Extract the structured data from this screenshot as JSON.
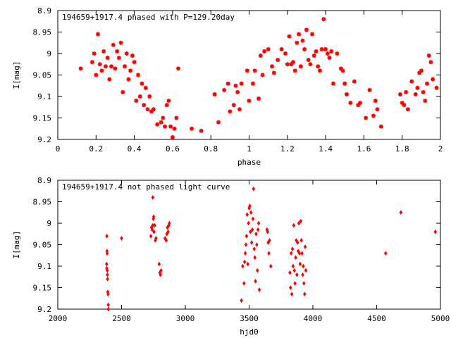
{
  "chart_data": [
    {
      "type": "scatter",
      "title": "194659+1917.4 phased with P=129.20day",
      "xlabel": "phase",
      "ylabel": "I[mag]",
      "xlim": [
        0,
        2
      ],
      "ylim": [
        9.2,
        8.9
      ],
      "y_inverted": true,
      "x_ticks": [
        "0",
        "0.2",
        "0.4",
        "0.6",
        "0.8",
        "1",
        "1.2",
        "1.4",
        "1.6",
        "1.8",
        "2"
      ],
      "y_ticks": [
        "8.9",
        "8.95",
        "9",
        "9.05",
        "9.1",
        "9.15",
        "9.2"
      ],
      "marker_color": "#ff0000",
      "marker": "star",
      "grid": false,
      "legend": "none",
      "series": [
        {
          "points": [
            [
              0.12,
              9.035
            ],
            [
              0.18,
              9.02
            ],
            [
              0.19,
              9.0
            ],
            [
              0.2,
              9.05
            ],
            [
              0.21,
              8.955
            ],
            [
              0.22,
              9.025
            ],
            [
              0.23,
              9.04
            ],
            [
              0.24,
              8.995
            ],
            [
              0.25,
              9.03
            ],
            [
              0.26,
              9.01
            ],
            [
              0.27,
              9.06
            ],
            [
              0.28,
              9.03
            ],
            [
              0.29,
              8.98
            ],
            [
              0.3,
              9.035
            ],
            [
              0.31,
              8.995
            ],
            [
              0.32,
              9.01
            ],
            [
              0.33,
              8.975
            ],
            [
              0.34,
              9.09
            ],
            [
              0.35,
              9.03
            ],
            [
              0.36,
              9.0
            ],
            [
              0.37,
              9.06
            ],
            [
              0.38,
              9.04
            ],
            [
              0.39,
              9.005
            ],
            [
              0.4,
              9.02
            ],
            [
              0.41,
              9.11
            ],
            [
              0.42,
              9.05
            ],
            [
              0.43,
              9.1
            ],
            [
              0.44,
              9.07
            ],
            [
              0.45,
              9.12
            ],
            [
              0.46,
              9.08
            ],
            [
              0.47,
              9.13
            ],
            [
              0.48,
              9.1
            ],
            [
              0.49,
              9.135
            ],
            [
              0.5,
              9.13
            ],
            [
              0.52,
              9.165
            ],
            [
              0.54,
              9.16
            ],
            [
              0.55,
              9.15
            ],
            [
              0.56,
              9.17
            ],
            [
              0.57,
              9.12
            ],
            [
              0.58,
              9.11
            ],
            [
              0.59,
              9.17
            ],
            [
              0.6,
              9.195
            ],
            [
              0.61,
              9.175
            ],
            [
              0.62,
              9.15
            ],
            [
              0.63,
              9.035
            ],
            [
              0.7,
              9.175
            ],
            [
              0.75,
              9.18
            ],
            [
              0.82,
              9.095
            ],
            [
              0.84,
              9.16
            ],
            [
              0.87,
              9.085
            ],
            [
              0.89,
              9.07
            ],
            [
              0.9,
              9.135
            ],
            [
              0.92,
              9.12
            ],
            [
              0.93,
              9.075
            ],
            [
              0.94,
              9.09
            ],
            [
              0.95,
              9.13
            ],
            [
              0.96,
              9.07
            ],
            [
              0.99,
              9.04
            ],
            [
              1.0,
              9.11
            ],
            [
              1.02,
              9.07
            ],
            [
              1.03,
              9.04
            ],
            [
              1.05,
              9.105
            ],
            [
              1.06,
              9.005
            ],
            [
              1.07,
              9.05
            ],
            [
              1.08,
              8.995
            ],
            [
              1.1,
              8.99
            ],
            [
              1.12,
              9.03
            ],
            [
              1.13,
              9.045
            ],
            [
              1.15,
              9.015
            ],
            [
              1.17,
              8.99
            ],
            [
              1.19,
              9.0
            ],
            [
              1.2,
              9.025
            ],
            [
              1.21,
              8.96
            ],
            [
              1.22,
              9.025
            ],
            [
              1.23,
              9.02
            ],
            [
              1.24,
              9.04
            ],
            [
              1.25,
              8.975
            ],
            [
              1.26,
              8.955
            ],
            [
              1.27,
              9.03
            ],
            [
              1.28,
              8.97
            ],
            [
              1.29,
              8.99
            ],
            [
              1.3,
              8.945
            ],
            [
              1.31,
              9.015
            ],
            [
              1.32,
              9.025
            ],
            [
              1.33,
              8.955
            ],
            [
              1.34,
              9.005
            ],
            [
              1.35,
              8.995
            ],
            [
              1.36,
              9.03
            ],
            [
              1.37,
              9.04
            ],
            [
              1.38,
              8.99
            ],
            [
              1.39,
              8.92
            ],
            [
              1.4,
              8.99
            ],
            [
              1.41,
              9.0
            ],
            [
              1.42,
              9.01
            ],
            [
              1.43,
              8.995
            ],
            [
              1.44,
              9.07
            ],
            [
              1.46,
              9.0
            ],
            [
              1.48,
              9.035
            ],
            [
              1.49,
              9.04
            ],
            [
              1.5,
              9.07
            ],
            [
              1.51,
              9.095
            ],
            [
              1.53,
              9.115
            ],
            [
              1.55,
              9.065
            ],
            [
              1.57,
              9.12
            ],
            [
              1.58,
              9.115
            ],
            [
              1.61,
              9.15
            ],
            [
              1.63,
              9.085
            ],
            [
              1.65,
              9.145
            ],
            [
              1.66,
              9.11
            ],
            [
              1.67,
              9.13
            ],
            [
              1.69,
              9.17
            ],
            [
              1.79,
              9.095
            ],
            [
              1.8,
              9.115
            ],
            [
              1.81,
              9.12
            ],
            [
              1.82,
              9.09
            ],
            [
              1.83,
              9.13
            ],
            [
              1.85,
              9.065
            ],
            [
              1.87,
              9.095
            ],
            [
              1.88,
              9.08
            ],
            [
              1.89,
              9.045
            ],
            [
              1.9,
              9.04
            ],
            [
              1.91,
              9.09
            ],
            [
              1.92,
              9.11
            ],
            [
              1.93,
              9.07
            ],
            [
              1.94,
              9.005
            ],
            [
              1.95,
              9.02
            ],
            [
              1.96,
              9.06
            ],
            [
              1.98,
              9.08
            ]
          ]
        }
      ]
    },
    {
      "type": "scatter",
      "title": "194659+1917.4 not phased light curve",
      "xlabel": "hjd0",
      "ylabel": "I[mag]",
      "xlim": [
        2000,
        5000
      ],
      "ylim": [
        9.2,
        8.9
      ],
      "y_inverted": true,
      "x_ticks": [
        "2000",
        "2500",
        "3000",
        "3500",
        "4000",
        "4500",
        "5000"
      ],
      "y_ticks": [
        "8.9",
        "8.95",
        "9",
        "9.05",
        "9.1",
        "9.15",
        "9.2"
      ],
      "marker_color": "#ff0000",
      "marker": "diamond",
      "grid": false,
      "legend": "none",
      "series": [
        {
          "points": [
            [
              2385,
              9.03
            ],
            [
              2386,
              9.065
            ],
            [
              2387,
              9.07
            ],
            [
              2388,
              9.11
            ],
            [
              2389,
              9.12
            ],
            [
              2390,
              9.13
            ],
            [
              2392,
              9.16
            ],
            [
              2394,
              9.165
            ],
            [
              2396,
              9.19
            ],
            [
              2397,
              9.2
            ],
            [
              2383,
              9.095
            ],
            [
              2384,
              9.105
            ],
            [
              2500,
              9.035
            ],
            [
              2730,
              9.03
            ],
            [
              2735,
              9.01
            ],
            [
              2740,
              9.015
            ],
            [
              2745,
              9.005
            ],
            [
              2750,
              8.99
            ],
            [
              2752,
              8.985
            ],
            [
              2755,
              9.02
            ],
            [
              2760,
              9.005
            ],
            [
              2765,
              9.04
            ],
            [
              2770,
              9.035
            ],
            [
              2745,
              8.94
            ],
            [
              2795,
              9.095
            ],
            [
              2800,
              9.115
            ],
            [
              2805,
              9.12
            ],
            [
              2810,
              9.11
            ],
            [
              2840,
              9.035
            ],
            [
              2850,
              9.04
            ],
            [
              2855,
              9.025
            ],
            [
              2860,
              9.01
            ],
            [
              2865,
              9.02
            ],
            [
              2870,
              9.005
            ],
            [
              2875,
              9.0
            ],
            [
              3440,
              9.18
            ],
            [
              3450,
              9.1
            ],
            [
              3460,
              9.14
            ],
            [
              3465,
              9.09
            ],
            [
              3470,
              9.07
            ],
            [
              3475,
              9.05
            ],
            [
              3480,
              9.03
            ],
            [
              3485,
              8.98
            ],
            [
              3490,
              9.095
            ],
            [
              3495,
              9.0
            ],
            [
              3500,
              8.965
            ],
            [
              3505,
              8.96
            ],
            [
              3510,
              9.02
            ],
            [
              3515,
              8.975
            ],
            [
              3520,
              9.045
            ],
            [
              3525,
              9.015
            ],
            [
              3530,
              8.99
            ],
            [
              3535,
              8.92
            ],
            [
              3540,
              9.06
            ],
            [
              3545,
              9.08
            ],
            [
              3550,
              9.135
            ],
            [
              3555,
              9.025
            ],
            [
              3560,
              9.05
            ],
            [
              3565,
              9.11
            ],
            [
              3570,
              9.015
            ],
            [
              3575,
              9.0
            ],
            [
              3580,
              9.155
            ],
            [
              3640,
              9.015
            ],
            [
              3645,
              9.02
            ],
            [
              3650,
              9.045
            ],
            [
              3655,
              9.07
            ],
            [
              3660,
              9.04
            ],
            [
              3670,
              9.1
            ],
            [
              3820,
              9.115
            ],
            [
              3825,
              9.15
            ],
            [
              3830,
              9.07
            ],
            [
              3835,
              9.165
            ],
            [
              3840,
              9.06
            ],
            [
              3845,
              9.1
            ],
            [
              3850,
              9.005
            ],
            [
              3855,
              9.11
            ],
            [
              3860,
              9.14
            ],
            [
              3865,
              9.08
            ],
            [
              3870,
              9.04
            ],
            [
              3875,
              9.12
            ],
            [
              3880,
              9.045
            ],
            [
              3885,
              9.065
            ],
            [
              3890,
              9.0
            ],
            [
              3895,
              9.07
            ],
            [
              3900,
              9.095
            ],
            [
              3905,
              8.995
            ],
            [
              3910,
              9.04
            ],
            [
              3915,
              9.07
            ],
            [
              3920,
              9.12
            ],
            [
              3925,
              9.1
            ],
            [
              3930,
              9.14
            ],
            [
              3935,
              9.165
            ],
            [
              3940,
              9.055
            ],
            [
              3945,
              9.11
            ],
            [
              4570,
              9.07
            ],
            [
              4690,
              8.975
            ],
            [
              4960,
              9.02
            ]
          ]
        }
      ]
    }
  ]
}
